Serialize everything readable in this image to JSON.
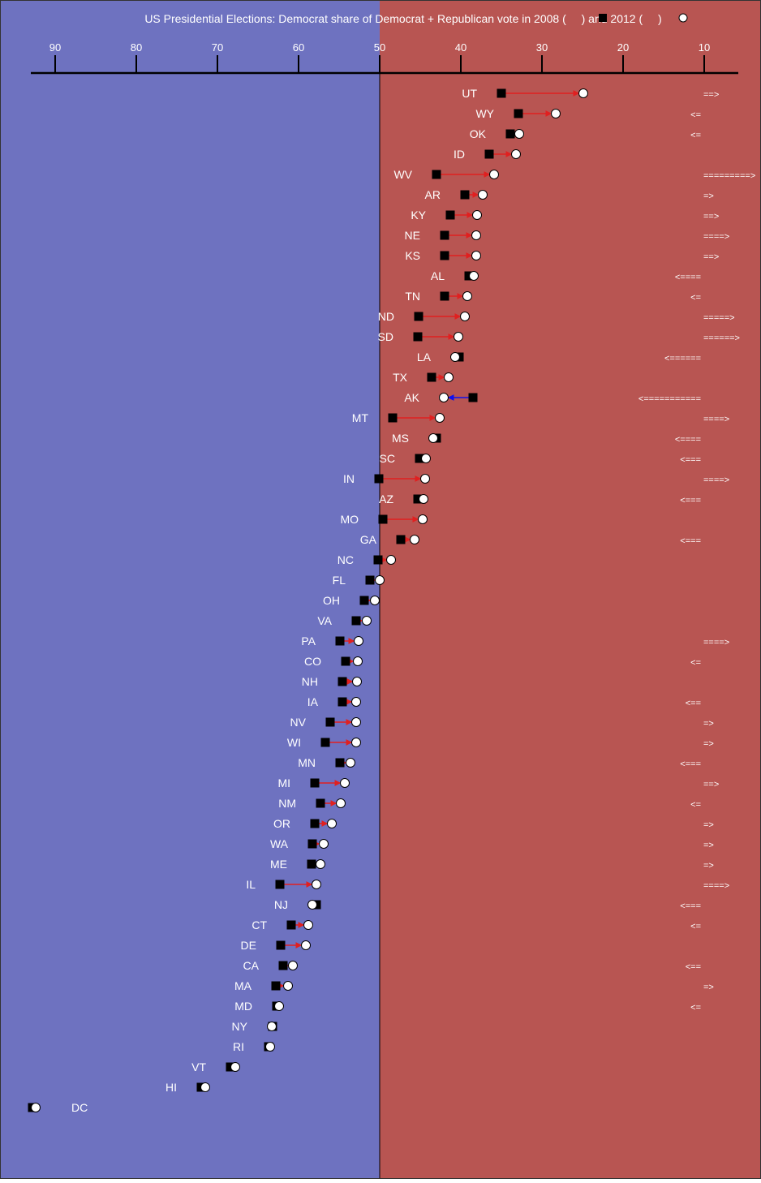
{
  "chart_data": {
    "type": "scatter",
    "title": "US Presidential Elections: Democrat share of Democrat + Republican vote in 2008 (",
    "title_mid": ") and 2012 (",
    "title_end": ")",
    "x_axis": {
      "direction": "reversed",
      "ticks": [
        90,
        80,
        70,
        60,
        50,
        40,
        30,
        20,
        10
      ]
    },
    "colors": {
      "democrat_side": "#6e72c0",
      "republican_side": "#b85552",
      "increase_arrow": "#e02020",
      "decrease_arrow": "#1010ee",
      "marker_2008": "#000000",
      "marker_2012": "#ffffff",
      "label": "#ffffff"
    },
    "markers": {
      "2008": "black square",
      "2012": "white circle"
    },
    "states": [
      {
        "state": "UT",
        "v2008": 35.0,
        "v2012": 24.9,
        "note": "==>"
      },
      {
        "state": "WY",
        "v2008": 32.9,
        "v2012": 28.3,
        "note": "<="
      },
      {
        "state": "OK",
        "v2008": 33.9,
        "v2012": 32.8,
        "note": "<="
      },
      {
        "state": "ID",
        "v2008": 36.5,
        "v2012": 33.2,
        "note": ""
      },
      {
        "state": "WV",
        "v2008": 43.0,
        "v2012": 35.9,
        "note": "=========>"
      },
      {
        "state": "AR",
        "v2008": 39.5,
        "v2012": 37.3,
        "note": "=>"
      },
      {
        "state": "KY",
        "v2008": 41.3,
        "v2012": 38.0,
        "note": "==>"
      },
      {
        "state": "NE",
        "v2008": 42.0,
        "v2012": 38.1,
        "note": "====>"
      },
      {
        "state": "KS",
        "v2008": 42.0,
        "v2012": 38.1,
        "note": "==>"
      },
      {
        "state": "AL",
        "v2008": 39.0,
        "v2012": 38.4,
        "note": "<===="
      },
      {
        "state": "TN",
        "v2008": 42.0,
        "v2012": 39.2,
        "note": "<="
      },
      {
        "state": "ND",
        "v2008": 45.2,
        "v2012": 39.5,
        "note": "=====>"
      },
      {
        "state": "SD",
        "v2008": 45.3,
        "v2012": 40.3,
        "note": "======>"
      },
      {
        "state": "LA",
        "v2008": 40.2,
        "v2012": 40.7,
        "note": "<======"
      },
      {
        "state": "TX",
        "v2008": 43.6,
        "v2012": 41.5,
        "note": ""
      },
      {
        "state": "AK",
        "v2008": 38.5,
        "v2012": 42.1,
        "note": "<==========="
      },
      {
        "state": "MT",
        "v2008": 48.4,
        "v2012": 42.6,
        "note": "====>"
      },
      {
        "state": "MS",
        "v2008": 43.0,
        "v2012": 43.4,
        "note": "<===="
      },
      {
        "state": "SC",
        "v2008": 45.1,
        "v2012": 44.3,
        "note": "<==="
      },
      {
        "state": "IN",
        "v2008": 50.1,
        "v2012": 44.4,
        "note": "====>"
      },
      {
        "state": "AZ",
        "v2008": 45.3,
        "v2012": 44.6,
        "note": "<==="
      },
      {
        "state": "MO",
        "v2008": 49.6,
        "v2012": 44.7,
        "note": ""
      },
      {
        "state": "GA",
        "v2008": 47.4,
        "v2012": 45.7,
        "note": "<==="
      },
      {
        "state": "NC",
        "v2008": 50.2,
        "v2012": 48.6,
        "note": ""
      },
      {
        "state": "FL",
        "v2008": 51.2,
        "v2012": 50.0,
        "note": ""
      },
      {
        "state": "OH",
        "v2008": 51.9,
        "v2012": 50.6,
        "note": ""
      },
      {
        "state": "VA",
        "v2008": 52.9,
        "v2012": 51.6,
        "note": ""
      },
      {
        "state": "PA",
        "v2008": 54.9,
        "v2012": 52.6,
        "note": "====>"
      },
      {
        "state": "CO",
        "v2008": 54.2,
        "v2012": 52.7,
        "note": "<="
      },
      {
        "state": "NH",
        "v2008": 54.6,
        "v2012": 52.8,
        "note": ""
      },
      {
        "state": "IA",
        "v2008": 54.6,
        "v2012": 52.9,
        "note": "<=="
      },
      {
        "state": "NV",
        "v2008": 56.1,
        "v2012": 52.9,
        "note": "=>"
      },
      {
        "state": "WI",
        "v2008": 56.7,
        "v2012": 52.9,
        "note": "=>"
      },
      {
        "state": "MN",
        "v2008": 54.9,
        "v2012": 53.6,
        "note": "<==="
      },
      {
        "state": "MI",
        "v2008": 58.0,
        "v2012": 54.3,
        "note": "==>"
      },
      {
        "state": "NM",
        "v2008": 57.3,
        "v2012": 54.8,
        "note": "<="
      },
      {
        "state": "OR",
        "v2008": 58.0,
        "v2012": 55.9,
        "note": "=>"
      },
      {
        "state": "WA",
        "v2008": 58.3,
        "v2012": 56.9,
        "note": "=>"
      },
      {
        "state": "ME",
        "v2008": 58.4,
        "v2012": 57.3,
        "note": "=>"
      },
      {
        "state": "IL",
        "v2008": 62.3,
        "v2012": 57.8,
        "note": "====>"
      },
      {
        "state": "NJ",
        "v2008": 57.8,
        "v2012": 58.3,
        "note": "<==="
      },
      {
        "state": "CT",
        "v2008": 60.9,
        "v2012": 58.8,
        "note": "<="
      },
      {
        "state": "DE",
        "v2008": 62.2,
        "v2012": 59.1,
        "note": ""
      },
      {
        "state": "CA",
        "v2008": 61.9,
        "v2012": 60.7,
        "note": "<=="
      },
      {
        "state": "MA",
        "v2008": 62.8,
        "v2012": 61.3,
        "note": "=>"
      },
      {
        "state": "MD",
        "v2008": 62.7,
        "v2012": 62.4,
        "note": "<="
      },
      {
        "state": "NY",
        "v2008": 63.2,
        "v2012": 63.3,
        "note": ""
      },
      {
        "state": "RI",
        "v2008": 63.7,
        "v2012": 63.5,
        "note": ""
      },
      {
        "state": "VT",
        "v2008": 68.4,
        "v2012": 67.8,
        "note": ""
      },
      {
        "state": "HI",
        "v2008": 72.0,
        "v2012": 71.5,
        "note": ""
      },
      {
        "state": "DC",
        "v2008": 92.8,
        "v2012": 92.4,
        "note": ""
      }
    ]
  }
}
